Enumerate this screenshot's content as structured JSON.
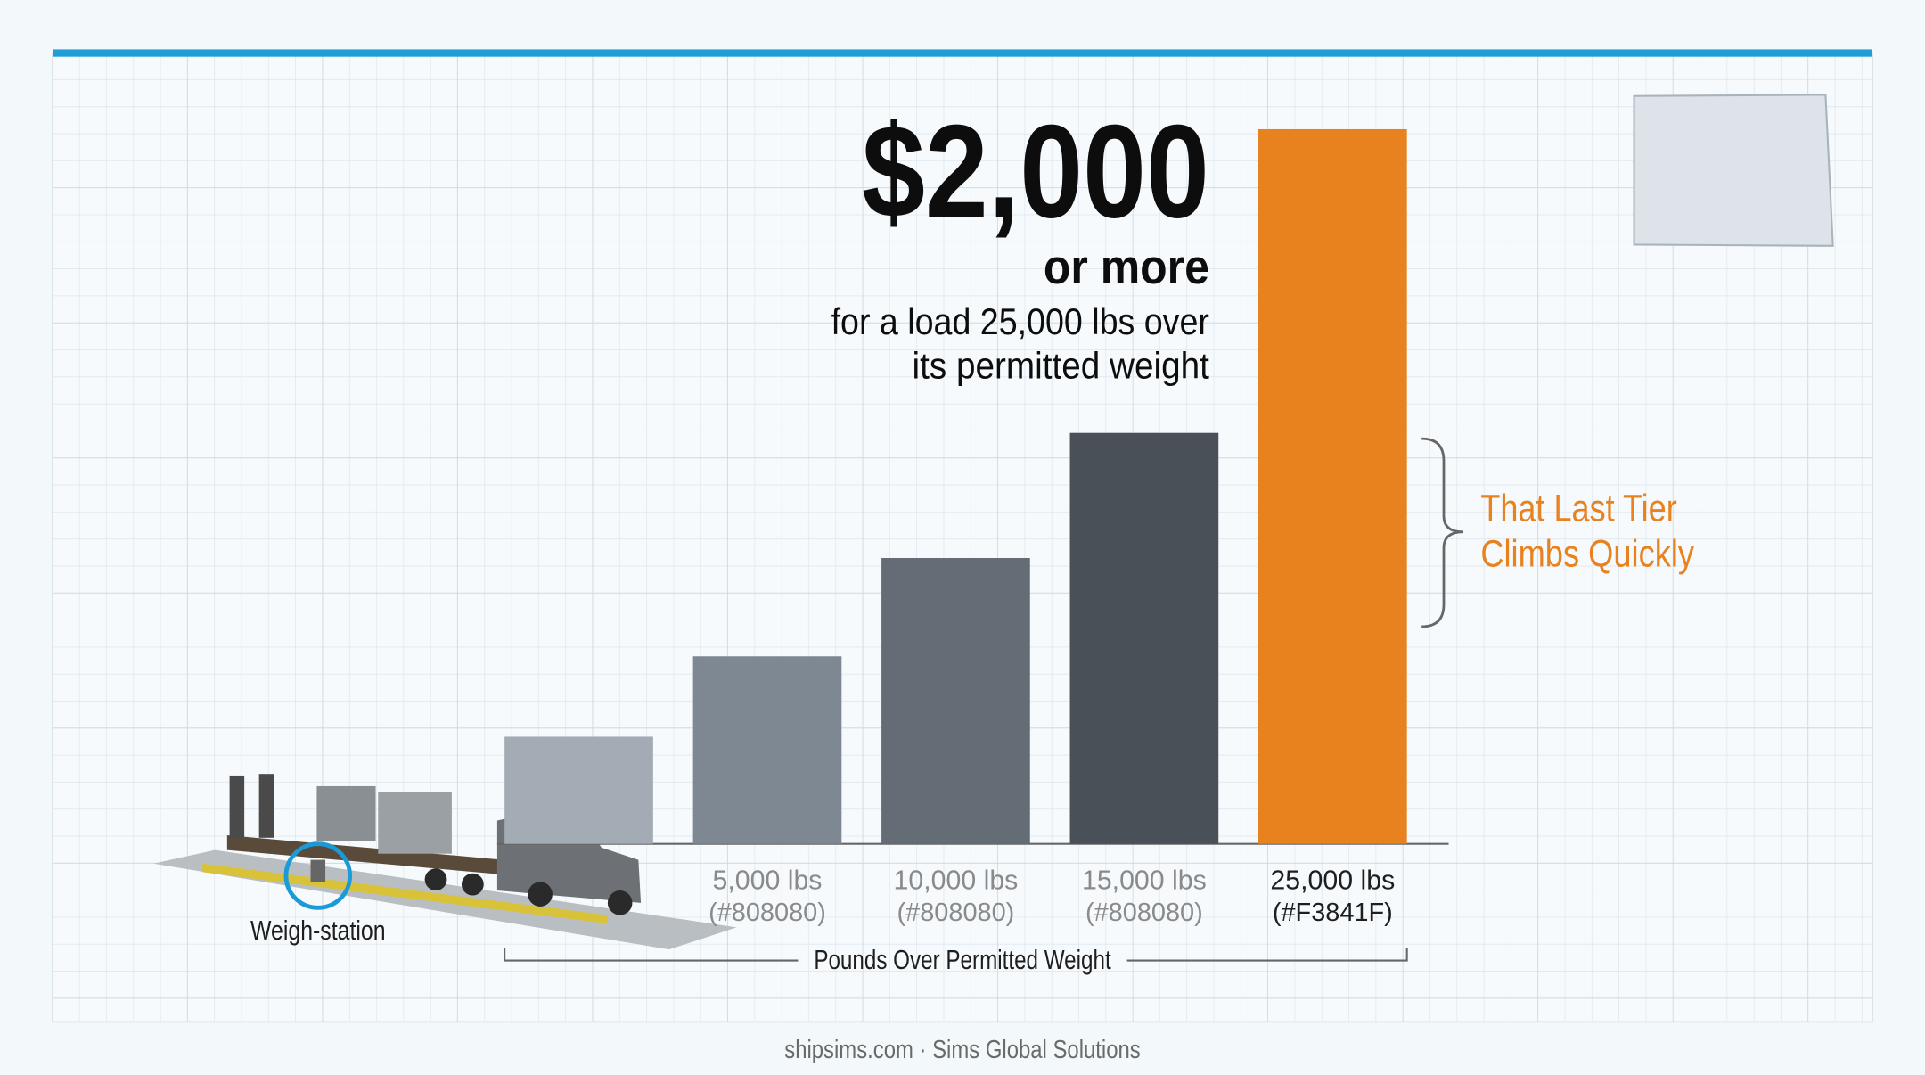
{
  "chart_data": {
    "type": "bar",
    "categories": [
      null,
      "5,000 lbs",
      "10,000 lbs",
      "15,000 lbs",
      "25,000 lbs"
    ],
    "category_notes": [
      null,
      "(#808080)",
      "(#808080)",
      "(#808080)",
      "(#F3841F)"
    ],
    "values": [
      300,
      525,
      800,
      1150,
      2000
    ],
    "value_labels": [
      null,
      null,
      null,
      null,
      "$2,000"
    ],
    "colors": [
      "#a3acb5",
      "#7e8892",
      "#646c75",
      "#4a5058",
      "#e8821e"
    ],
    "ylim": [
      0,
      2000
    ],
    "x_label": "Pounds Over Permitted Weight",
    "annotation_lines": [
      "or more",
      "for a load 25,000 lbs over",
      "its permitted weight"
    ],
    "callout_lines": [
      "That Last Tier",
      "Climbs Quickly"
    ],
    "inset_label": "Weigh-station",
    "source": "shipsims.com · Sims Global Solutions"
  }
}
